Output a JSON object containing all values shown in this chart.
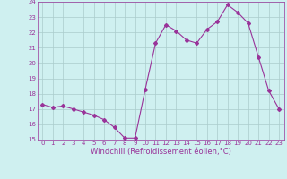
{
  "x": [
    0,
    1,
    2,
    3,
    4,
    5,
    6,
    7,
    8,
    9,
    10,
    11,
    12,
    13,
    14,
    15,
    16,
    17,
    18,
    19,
    20,
    21,
    22,
    23
  ],
  "y": [
    17.3,
    17.1,
    17.2,
    17.0,
    16.8,
    16.6,
    16.3,
    15.8,
    15.1,
    15.1,
    18.3,
    21.3,
    22.5,
    22.1,
    21.5,
    21.3,
    22.2,
    22.7,
    23.8,
    23.3,
    22.6,
    20.4,
    18.2,
    17.0
  ],
  "color": "#993399",
  "bg_color": "#cff0f0",
  "grid_color": "#aacccc",
  "xlabel": "Windchill (Refroidissement éolien,°C)",
  "ylim": [
    15,
    24
  ],
  "xlim": [
    -0.5,
    23.5
  ],
  "yticks": [
    15,
    16,
    17,
    18,
    19,
    20,
    21,
    22,
    23,
    24
  ],
  "xticks": [
    0,
    1,
    2,
    3,
    4,
    5,
    6,
    7,
    8,
    9,
    10,
    11,
    12,
    13,
    14,
    15,
    16,
    17,
    18,
    19,
    20,
    21,
    22,
    23
  ],
  "tick_fontsize": 5.0,
  "xlabel_fontsize": 6.0,
  "marker": "D",
  "marker_size": 2.0,
  "line_width": 0.8
}
